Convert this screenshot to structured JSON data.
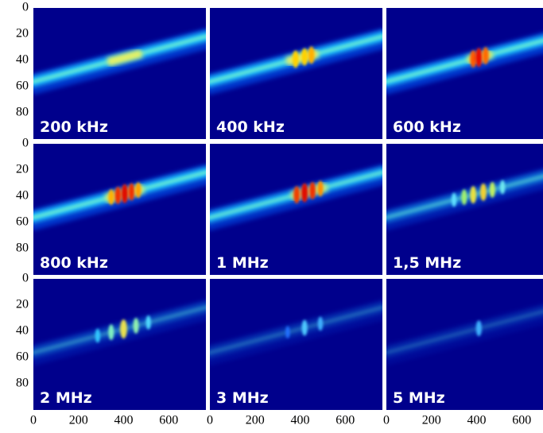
{
  "chart_data": [
    {
      "type": "image",
      "label": "200 kHz",
      "xlim": [
        0,
        765
      ],
      "ylim": [
        0,
        100
      ],
      "y_inverted": true,
      "yticks": [
        0,
        20,
        40,
        60,
        80
      ]
    },
    {
      "type": "image",
      "label": "400 kHz",
      "xlim": [
        0,
        765
      ],
      "ylim": [
        0,
        100
      ],
      "y_inverted": true
    },
    {
      "type": "image",
      "label": "600 kHz",
      "xlim": [
        0,
        765
      ],
      "ylim": [
        0,
        100
      ],
      "y_inverted": true
    },
    {
      "type": "image",
      "label": "800 kHz",
      "xlim": [
        0,
        765
      ],
      "ylim": [
        0,
        100
      ],
      "y_inverted": true,
      "yticks": [
        0,
        20,
        40,
        60,
        80
      ]
    },
    {
      "type": "image",
      "label": "1 MHz",
      "xlim": [
        0,
        765
      ],
      "ylim": [
        0,
        100
      ],
      "y_inverted": true
    },
    {
      "type": "image",
      "label": "1,5 MHz",
      "xlim": [
        0,
        765
      ],
      "ylim": [
        0,
        100
      ],
      "y_inverted": true
    },
    {
      "type": "image",
      "label": "2 MHz",
      "xlim": [
        0,
        765
      ],
      "ylim": [
        0,
        100
      ],
      "y_inverted": true,
      "yticks": [
        0,
        20,
        40,
        60,
        80
      ],
      "xticks": [
        0,
        200,
        400,
        600
      ]
    },
    {
      "type": "image",
      "label": "3 MHz",
      "xlim": [
        0,
        765
      ],
      "ylim": [
        0,
        100
      ],
      "y_inverted": true,
      "xticks": [
        0,
        200,
        400,
        600
      ]
    },
    {
      "type": "image",
      "label": "5 MHz",
      "xlim": [
        0,
        765
      ],
      "ylim": [
        0,
        100
      ],
      "y_inverted": true,
      "xticks": [
        0,
        200,
        400,
        600
      ]
    }
  ]
}
